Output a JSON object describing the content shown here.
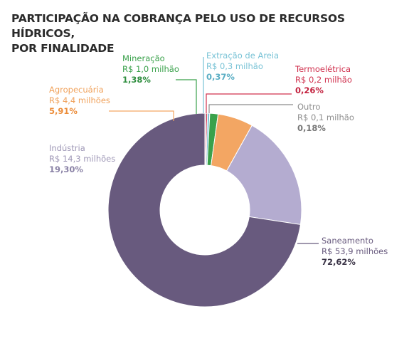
{
  "title_line1": "PARTICIPAÇÃO NA COBRANÇA PELO USO DE RECURSOS HÍDRICOS,",
  "title_line2": "POR FINALIDADE",
  "chart_data": {
    "type": "pie",
    "title": "PARTICIPAÇÃO NA COBRANÇA PELO USO DE RECURSOS HÍDRICOS, POR FINALIDADE",
    "donut": true,
    "start": "top, clockwise",
    "slices": [
      {
        "name": "Saneamento",
        "value_label": "R$ 53,9 milhões",
        "value": 53.9,
        "percent_label": "72,62%",
        "percent": 72.62,
        "color": "#685a7e"
      },
      {
        "name": "Indústria",
        "value_label": "R$ 14,3 milhões",
        "value": 14.3,
        "percent_label": "19,30%",
        "percent": 19.3,
        "color": "#b4acd0"
      },
      {
        "name": "Agropecuária",
        "value_label": "R$ 4,4 milhões",
        "value": 4.4,
        "percent_label": "5,91%",
        "percent": 5.91,
        "color": "#f3a663"
      },
      {
        "name": "Mineração",
        "value_label": "R$ 1,0 milhão",
        "value": 1.0,
        "percent_label": "1,38%",
        "percent": 1.38,
        "color": "#3aa14b"
      },
      {
        "name": "Extração de Areia",
        "value_label": "R$ 0,3 milhão",
        "value": 0.3,
        "percent_label": "0,37%",
        "percent": 0.37,
        "color": "#79c3d6"
      },
      {
        "name": "Termoelétrica",
        "value_label": "R$ 0,2 milhão",
        "value": 0.2,
        "percent_label": "0,26%",
        "percent": 0.26,
        "color": "#d0314e"
      },
      {
        "name": "Outro",
        "value_label": "R$ 0,1 milhão",
        "value": 0.1,
        "percent_label": "0,18%",
        "percent": 0.18,
        "color": "#8c8c8c"
      }
    ]
  }
}
